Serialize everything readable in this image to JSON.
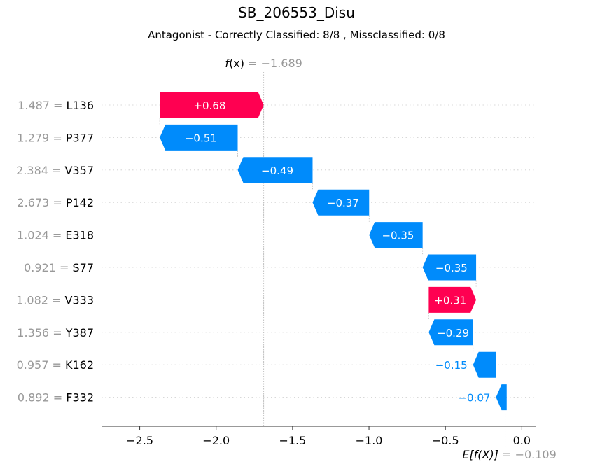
{
  "title": "SB_206553_Disu",
  "subtitle": "Antagonist - Correctly Classified: 8/8 , Missclassified: 0/8",
  "colors": {
    "positive": "#ff0051",
    "negative": "#008bfb",
    "muted": "#999999"
  },
  "chart_data": {
    "type": "bar",
    "subtype": "waterfall",
    "fx": {
      "label_f": "f",
      "label_x": "(x)",
      "value": "= −1.689",
      "num": -1.689
    },
    "efx": {
      "label": "E[f(X)]",
      "value": "= −0.109",
      "num": -0.109
    },
    "features": [
      {
        "value": "1.487",
        "name": "L136",
        "contribution": 0.68,
        "label": "+0.68"
      },
      {
        "value": "1.279",
        "name": "P377",
        "contribution": -0.51,
        "label": "−0.51"
      },
      {
        "value": "2.384",
        "name": "V357",
        "contribution": -0.49,
        "label": "−0.49"
      },
      {
        "value": "2.673",
        "name": "P142",
        "contribution": -0.37,
        "label": "−0.37"
      },
      {
        "value": "1.024",
        "name": "E318",
        "contribution": -0.35,
        "label": "−0.35"
      },
      {
        "value": "0.921",
        "name": "S77",
        "contribution": -0.35,
        "label": "−0.35"
      },
      {
        "value": "1.082",
        "name": "V333",
        "contribution": 0.31,
        "label": "+0.31"
      },
      {
        "value": "1.356",
        "name": "Y387",
        "contribution": -0.29,
        "label": "−0.29"
      },
      {
        "value": "0.957",
        "name": "K162",
        "contribution": -0.15,
        "label": "−0.15"
      },
      {
        "value": "0.892",
        "name": "F332",
        "contribution": -0.07,
        "label": "−0.07"
      }
    ],
    "xticks": [
      {
        "value": -2.5,
        "label": "−2.5"
      },
      {
        "value": -2.0,
        "label": "−2.0"
      },
      {
        "value": -1.5,
        "label": "−1.5"
      },
      {
        "value": -1.0,
        "label": "−1.0"
      },
      {
        "value": -0.5,
        "label": "−0.5"
      },
      {
        "value": 0.0,
        "label": "0.0"
      }
    ],
    "xlim": [
      -2.75,
      0.09
    ]
  }
}
